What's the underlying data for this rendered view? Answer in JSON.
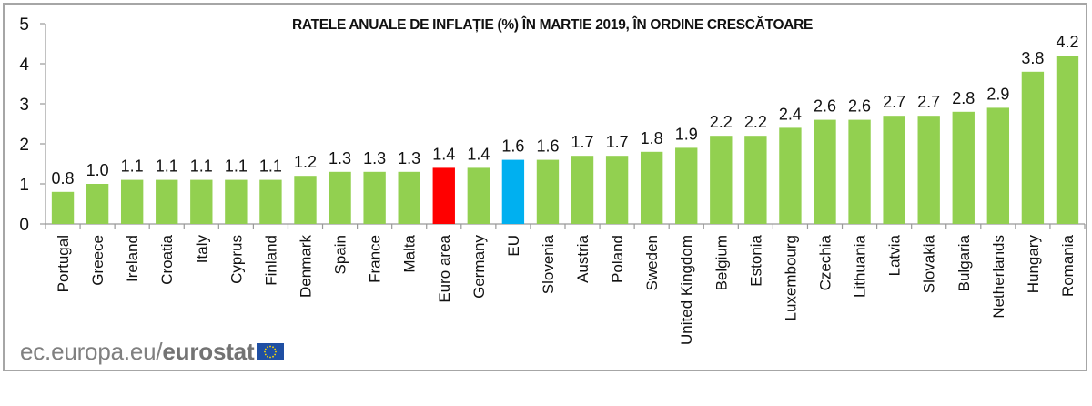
{
  "chart_data": {
    "type": "bar",
    "title": "RATELE ANUALE DE INFLAȚIE (%) ÎN MARTIE 2019, ÎN ORDINE CRESCĂTOARE",
    "xlabel": "",
    "ylabel": "",
    "ylim": [
      0,
      5
    ],
    "yticks": [
      "0",
      "1",
      "2",
      "3",
      "4",
      "5"
    ],
    "grid": false,
    "legend": "none",
    "categories": [
      "Portugal",
      "Greece",
      "Ireland",
      "Croatia",
      "Italy",
      "Cyprus",
      "Finland",
      "Denmark",
      "Spain",
      "France",
      "Malta",
      "Euro area",
      "Germany",
      "EU",
      "Slovenia",
      "Austria",
      "Poland",
      "Sweden",
      "United Kingdom",
      "Belgium",
      "Estonia",
      "Luxembourg",
      "Czechia",
      "Lithuania",
      "Latvia",
      "Slovakia",
      "Bulgaria",
      "Netherlands",
      "Hungary",
      "Romania"
    ],
    "values": [
      0.8,
      1.0,
      1.1,
      1.1,
      1.1,
      1.1,
      1.1,
      1.2,
      1.3,
      1.3,
      1.3,
      1.4,
      1.4,
      1.6,
      1.6,
      1.7,
      1.7,
      1.8,
      1.9,
      2.2,
      2.2,
      2.4,
      2.6,
      2.6,
      2.7,
      2.7,
      2.8,
      2.9,
      3.8,
      4.2
    ],
    "value_labels": [
      "0.8",
      "1.0",
      "1.1",
      "1.1",
      "1.1",
      "1.1",
      "1.1",
      "1.2",
      "1.3",
      "1.3",
      "1.3",
      "1.4",
      "1.4",
      "1.6",
      "1.6",
      "1.7",
      "1.7",
      "1.8",
      "1.9",
      "2.2",
      "2.2",
      "2.4",
      "2.6",
      "2.6",
      "2.7",
      "2.7",
      "2.8",
      "2.9",
      "3.8",
      "4.2"
    ],
    "colors": {
      "default": "#92d050",
      "Euro area": "#ff0000",
      "EU": "#00b0f0"
    }
  },
  "footer": {
    "source_prefix": "ec.europa.eu/",
    "source_brand": "eurostat"
  }
}
